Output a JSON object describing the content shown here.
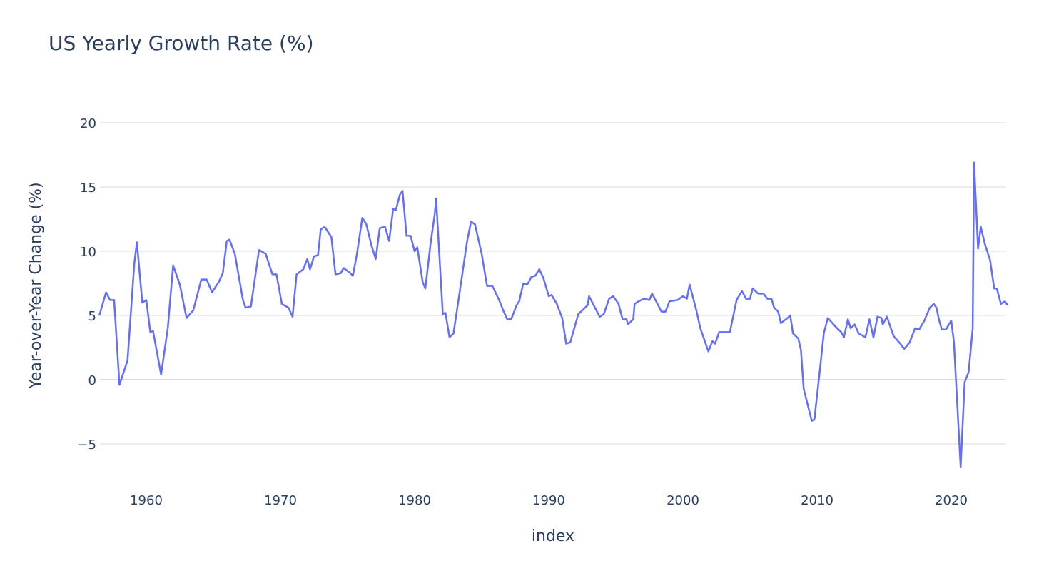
{
  "chart_data": {
    "type": "line",
    "title": "US Yearly Growth Rate (%)",
    "xlabel": "index",
    "ylabel": "Year-over-Year Change (%)",
    "xlim": [
      1956.5,
      2024.2
    ],
    "ylim": [
      -7.2,
      21.5
    ],
    "xticks": [
      1960,
      1970,
      1980,
      1990,
      2000,
      2010,
      2020
    ],
    "yticks": [
      -5,
      0,
      5,
      10,
      15,
      20
    ],
    "ytick_labels": [
      "−5",
      "0",
      "5",
      "10",
      "15",
      "20"
    ],
    "grid": true,
    "line_color": "#636efa",
    "series": [
      {
        "name": "Year-over-Year Change (%)",
        "x": [
          1956.5,
          1957.0,
          1957.3,
          1957.6,
          1958.0,
          1958.6,
          1959.1,
          1959.3,
          1959.7,
          1960.0,
          1960.3,
          1960.5,
          1961.1,
          1961.6,
          1962.0,
          1962.5,
          1963.0,
          1963.5,
          1964.1,
          1964.5,
          1964.9,
          1965.4,
          1965.7,
          1966.0,
          1966.2,
          1966.6,
          1967.2,
          1967.4,
          1967.8,
          1968.4,
          1968.9,
          1969.4,
          1969.7,
          1970.1,
          1970.6,
          1970.9,
          1971.2,
          1971.7,
          1972.0,
          1972.2,
          1972.5,
          1972.8,
          1973.0,
          1973.3,
          1973.8,
          1974.1,
          1974.5,
          1974.7,
          1975.2,
          1975.4,
          1975.7,
          1976.1,
          1976.4,
          1976.8,
          1977.1,
          1977.4,
          1977.8,
          1978.1,
          1978.4,
          1978.6,
          1978.9,
          1979.1,
          1979.4,
          1979.7,
          1980.0,
          1980.2,
          1980.6,
          1980.8,
          1981.2,
          1981.5,
          1981.6,
          1982.1,
          1982.3,
          1982.6,
          1982.9,
          1983.4,
          1983.9,
          1984.2,
          1984.5,
          1985.0,
          1985.4,
          1985.8,
          1986.3,
          1986.6,
          1986.9,
          1987.2,
          1987.6,
          1987.8,
          1988.1,
          1988.4,
          1988.7,
          1989.0,
          1989.3,
          1989.6,
          1990.0,
          1990.2,
          1990.6,
          1991.0,
          1991.3,
          1991.6,
          1992.2,
          1992.6,
          1992.9,
          1993.0,
          1993.4,
          1993.8,
          1994.1,
          1994.5,
          1994.8,
          1995.2,
          1995.5,
          1995.8,
          1995.9,
          1996.3,
          1996.4,
          1996.7,
          1997.1,
          1997.5,
          1997.7,
          1998.0,
          1998.4,
          1998.7,
          1999.0,
          1999.6,
          2000.0,
          2000.3,
          2000.5,
          2001.0,
          2001.3,
          2001.9,
          2002.2,
          2002.4,
          2002.7,
          2003.3,
          2003.5,
          2004.0,
          2004.4,
          2004.7,
          2005.0,
          2005.2,
          2005.6,
          2006.0,
          2006.3,
          2006.6,
          2006.8,
          2007.1,
          2007.3,
          2007.8,
          2008.0,
          2008.2,
          2008.6,
          2008.8,
          2009.0,
          2009.6,
          2009.8,
          2010.2,
          2010.5,
          2010.8,
          2011.4,
          2011.8,
          2012.0,
          2012.3,
          2012.5,
          2012.8,
          2013.1,
          2013.6,
          2013.9,
          2014.2,
          2014.5,
          2014.8,
          2014.9,
          2015.2,
          2015.7,
          2016.2,
          2016.5,
          2016.9,
          2017.3,
          2017.6,
          2018.0,
          2018.4,
          2018.7,
          2018.9,
          2019.1,
          2019.3,
          2019.6,
          2020.0,
          2020.2,
          2020.7,
          2021.0,
          2021.3,
          2021.6,
          2021.7,
          2022.0,
          2022.2,
          2022.5,
          2022.9,
          2023.2,
          2023.4,
          2023.7,
          2024.0,
          2024.2
        ],
        "y": [
          5.0,
          6.8,
          6.2,
          6.2,
          -0.4,
          1.5,
          9.0,
          10.7,
          6.0,
          6.2,
          3.7,
          3.8,
          0.4,
          4.0,
          8.9,
          7.4,
          4.8,
          5.4,
          7.8,
          7.8,
          6.8,
          7.6,
          8.3,
          10.8,
          10.9,
          9.8,
          6.2,
          5.6,
          5.7,
          10.1,
          9.8,
          8.2,
          8.2,
          5.9,
          5.6,
          4.9,
          8.2,
          8.6,
          9.4,
          8.6,
          9.6,
          9.7,
          11.7,
          11.9,
          11.1,
          8.2,
          8.3,
          8.7,
          8.3,
          8.1,
          9.8,
          12.6,
          12.1,
          10.4,
          9.4,
          11.8,
          11.9,
          10.8,
          13.3,
          13.2,
          14.4,
          14.7,
          11.2,
          11.2,
          10.0,
          10.3,
          7.6,
          7.1,
          10.7,
          12.9,
          14.1,
          5.1,
          5.2,
          3.3,
          3.6,
          7.1,
          10.7,
          12.3,
          12.1,
          9.8,
          7.3,
          7.3,
          6.2,
          5.4,
          4.7,
          4.7,
          5.8,
          6.1,
          7.5,
          7.4,
          8.0,
          8.1,
          8.6,
          7.9,
          6.5,
          6.6,
          5.9,
          4.8,
          2.8,
          2.9,
          5.1,
          5.5,
          5.8,
          6.5,
          5.7,
          4.9,
          5.1,
          6.3,
          6.5,
          5.9,
          4.7,
          4.7,
          4.3,
          4.7,
          5.9,
          6.1,
          6.3,
          6.2,
          6.7,
          6.1,
          5.3,
          5.3,
          6.1,
          6.2,
          6.5,
          6.3,
          7.4,
          5.4,
          4.0,
          2.2,
          3.0,
          2.8,
          3.7,
          3.7,
          3.7,
          6.2,
          6.9,
          6.3,
          6.3,
          7.1,
          6.7,
          6.7,
          6.3,
          6.3,
          5.6,
          5.3,
          4.4,
          4.8,
          5.0,
          3.6,
          3.2,
          2.3,
          -0.7,
          -3.2,
          -3.1,
          0.7,
          3.6,
          4.8,
          4.1,
          3.7,
          3.3,
          4.7,
          4.0,
          4.3,
          3.6,
          3.3,
          4.7,
          3.3,
          4.9,
          4.8,
          4.3,
          4.9,
          3.4,
          2.8,
          2.4,
          2.9,
          4.0,
          3.9,
          4.6,
          5.6,
          5.9,
          5.6,
          4.6,
          3.9,
          3.9,
          4.6,
          2.9,
          -6.8,
          -0.2,
          0.6,
          4.0,
          16.9,
          10.2,
          11.9,
          10.6,
          9.3,
          7.1,
          7.1,
          5.9,
          6.1,
          5.8
        ]
      }
    ]
  }
}
